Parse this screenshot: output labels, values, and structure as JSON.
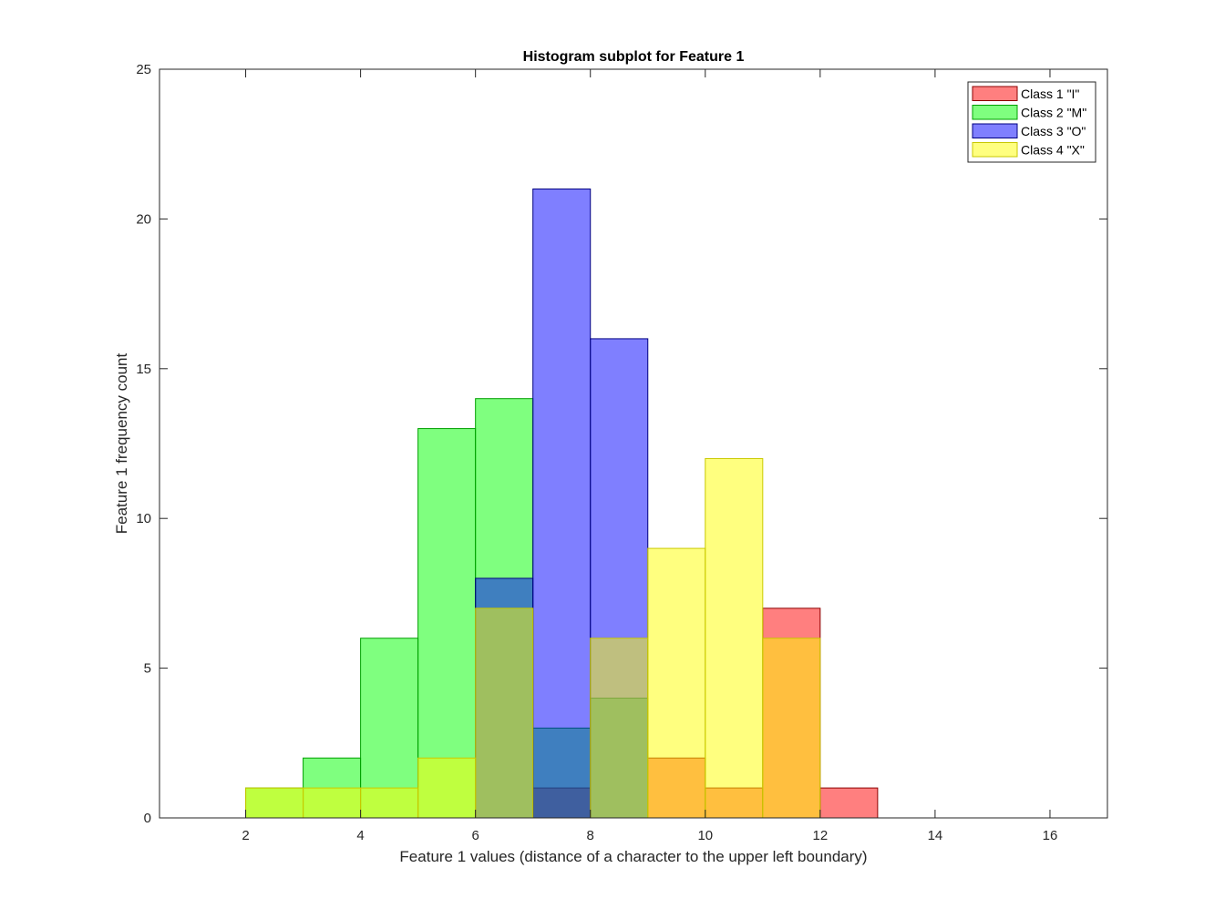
{
  "chart_data": {
    "type": "bar",
    "subtype": "overlaid-histogram",
    "title": "Histogram subplot for Feature 1",
    "xlabel": "Feature 1 values (distance of a character to the upper left boundary)",
    "ylabel": "Feature 1 frequency count",
    "xlim": [
      0.5,
      17
    ],
    "ylim": [
      0,
      25
    ],
    "xticks": [
      2,
      4,
      6,
      8,
      10,
      12,
      14,
      16
    ],
    "yticks": [
      0,
      5,
      10,
      15,
      20,
      25
    ],
    "bin_width": 1,
    "bar_opacity": 0.5,
    "legend_position": "top-right",
    "grid": false,
    "series": [
      {
        "name": "Class 1 \"I\"",
        "color": "#ff0000",
        "edge_color": "#8b0000",
        "bins": [
          {
            "x0": 7,
            "x1": 8,
            "count": 1
          },
          {
            "x0": 9,
            "x1": 10,
            "count": 2
          },
          {
            "x0": 10,
            "x1": 11,
            "count": 1
          },
          {
            "x0": 11,
            "x1": 12,
            "count": 7
          },
          {
            "x0": 12,
            "x1": 13,
            "count": 1
          }
        ]
      },
      {
        "name": "Class 2 \"M\"",
        "color": "#00ff00",
        "edge_color": "#00a000",
        "bins": [
          {
            "x0": 2,
            "x1": 3,
            "count": 1
          },
          {
            "x0": 3,
            "x1": 4,
            "count": 2
          },
          {
            "x0": 4,
            "x1": 5,
            "count": 6
          },
          {
            "x0": 5,
            "x1": 6,
            "count": 13
          },
          {
            "x0": 6,
            "x1": 7,
            "count": 14
          },
          {
            "x0": 7,
            "x1": 8,
            "count": 3
          },
          {
            "x0": 8,
            "x1": 9,
            "count": 4
          }
        ]
      },
      {
        "name": "Class 3 \"O\"",
        "color": "#0000ff",
        "edge_color": "#000080",
        "bins": [
          {
            "x0": 6,
            "x1": 7,
            "count": 8
          },
          {
            "x0": 7,
            "x1": 8,
            "count": 21
          },
          {
            "x0": 8,
            "x1": 9,
            "count": 16
          }
        ]
      },
      {
        "name": "Class 4 \"X\"",
        "color": "#ffff00",
        "edge_color": "#c8c800",
        "bins": [
          {
            "x0": 2,
            "x1": 3,
            "count": 1
          },
          {
            "x0": 3,
            "x1": 4,
            "count": 1
          },
          {
            "x0": 4,
            "x1": 5,
            "count": 1
          },
          {
            "x0": 5,
            "x1": 6,
            "count": 2
          },
          {
            "x0": 6,
            "x1": 7,
            "count": 7
          },
          {
            "x0": 8,
            "x1": 9,
            "count": 6
          },
          {
            "x0": 9,
            "x1": 10,
            "count": 9
          },
          {
            "x0": 10,
            "x1": 11,
            "count": 12
          },
          {
            "x0": 11,
            "x1": 12,
            "count": 6
          }
        ]
      }
    ]
  }
}
